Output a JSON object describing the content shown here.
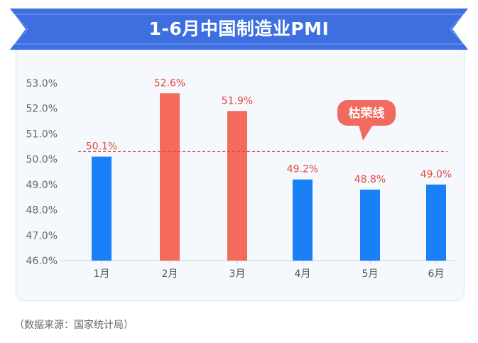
{
  "title": "1-6月中国制造业PMI",
  "source": "（数据来源：国家统计局）",
  "colors": {
    "banner": "#3d6fe0",
    "above": "#f46a5d",
    "below": "#1a80f8",
    "label": "#e14a3d",
    "threshold_line": "#e5423a",
    "tooltip": "#f06a60"
  },
  "chart_data": {
    "type": "bar",
    "title": "1-6月中国制造业PMI",
    "categories": [
      "1月",
      "2月",
      "3月",
      "4月",
      "5月",
      "6月"
    ],
    "values": [
      50.1,
      52.6,
      51.9,
      49.2,
      48.8,
      49.0
    ],
    "data_labels": [
      "50.1%",
      "52.6%",
      "51.9%",
      "49.2%",
      "48.8%",
      "49.0%"
    ],
    "ylim": [
      46.0,
      53.0
    ],
    "yticks": [
      46.0,
      47.0,
      48.0,
      49.0,
      50.0,
      51.0,
      52.0,
      53.0
    ],
    "ytick_labels": [
      "46.0%",
      "47.0%",
      "48.0%",
      "49.0%",
      "50.0%",
      "51.0%",
      "52.0%",
      "53.0%"
    ],
    "threshold": {
      "value": 50.3,
      "label": "枯荣线"
    },
    "grid": false
  }
}
